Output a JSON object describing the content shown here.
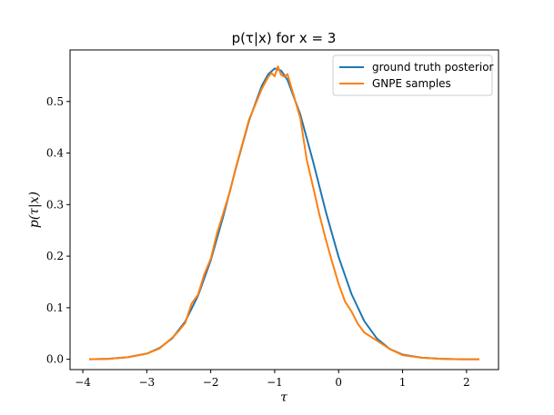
{
  "chart_data": {
    "type": "line",
    "title": "p(τ|x) for x = 3",
    "xlabel": "τ",
    "ylabel": "p(τ|x)",
    "xlim": [
      -4.2,
      2.5
    ],
    "ylim": [
      -0.02,
      0.6
    ],
    "xticks": [
      -4,
      -3,
      -2,
      -1,
      0,
      1,
      2
    ],
    "yticks": [
      0.0,
      0.1,
      0.2,
      0.3,
      0.4,
      0.5
    ],
    "xtick_labels": [
      "−4",
      "−3",
      "−2",
      "−1",
      "0",
      "1",
      "2"
    ],
    "ytick_labels": [
      "0.0",
      "0.1",
      "0.2",
      "0.3",
      "0.4",
      "0.5"
    ],
    "legend_position": "top-right",
    "grid": false,
    "series": [
      {
        "name": "ground truth posterior",
        "color": "#1f77b4",
        "x": [
          -3.9,
          -3.6,
          -3.3,
          -3.0,
          -2.8,
          -2.6,
          -2.4,
          -2.2,
          -2.0,
          -1.8,
          -1.6,
          -1.4,
          -1.2,
          -1.1,
          -1.0,
          -0.9,
          -0.8,
          -0.6,
          -0.4,
          -0.2,
          0.0,
          0.2,
          0.4,
          0.6,
          0.8,
          1.0,
          1.3,
          1.6,
          1.9,
          2.2
        ],
        "y": [
          0.0,
          0.001,
          0.004,
          0.011,
          0.022,
          0.041,
          0.073,
          0.123,
          0.192,
          0.279,
          0.374,
          0.463,
          0.531,
          0.553,
          0.564,
          0.56,
          0.542,
          0.475,
          0.384,
          0.286,
          0.198,
          0.127,
          0.074,
          0.04,
          0.02,
          0.009,
          0.003,
          0.001,
          0.0,
          0.0
        ]
      },
      {
        "name": "GNPE samples",
        "color": "#ff7f0e",
        "x": [
          -3.9,
          -3.6,
          -3.3,
          -3.0,
          -2.8,
          -2.6,
          -2.5,
          -2.4,
          -2.3,
          -2.2,
          -2.1,
          -2.0,
          -1.9,
          -1.8,
          -1.7,
          -1.6,
          -1.5,
          -1.4,
          -1.3,
          -1.2,
          -1.1,
          -1.05,
          -1.0,
          -0.95,
          -0.9,
          -0.85,
          -0.8,
          -0.75,
          -0.7,
          -0.6,
          -0.5,
          -0.4,
          -0.3,
          -0.2,
          -0.1,
          0.0,
          0.1,
          0.2,
          0.3,
          0.4,
          0.6,
          0.8,
          1.0,
          1.3,
          1.6,
          1.9,
          2.2
        ],
        "y": [
          0.0,
          0.001,
          0.004,
          0.011,
          0.021,
          0.042,
          0.055,
          0.07,
          0.108,
          0.125,
          0.165,
          0.195,
          0.245,
          0.285,
          0.325,
          0.375,
          0.42,
          0.465,
          0.495,
          0.525,
          0.548,
          0.555,
          0.549,
          0.568,
          0.552,
          0.548,
          0.553,
          0.532,
          0.511,
          0.468,
          0.388,
          0.335,
          0.28,
          0.232,
          0.188,
          0.146,
          0.112,
          0.093,
          0.069,
          0.052,
          0.036,
          0.02,
          0.008,
          0.003,
          0.001,
          0.0,
          0.0
        ]
      }
    ]
  }
}
